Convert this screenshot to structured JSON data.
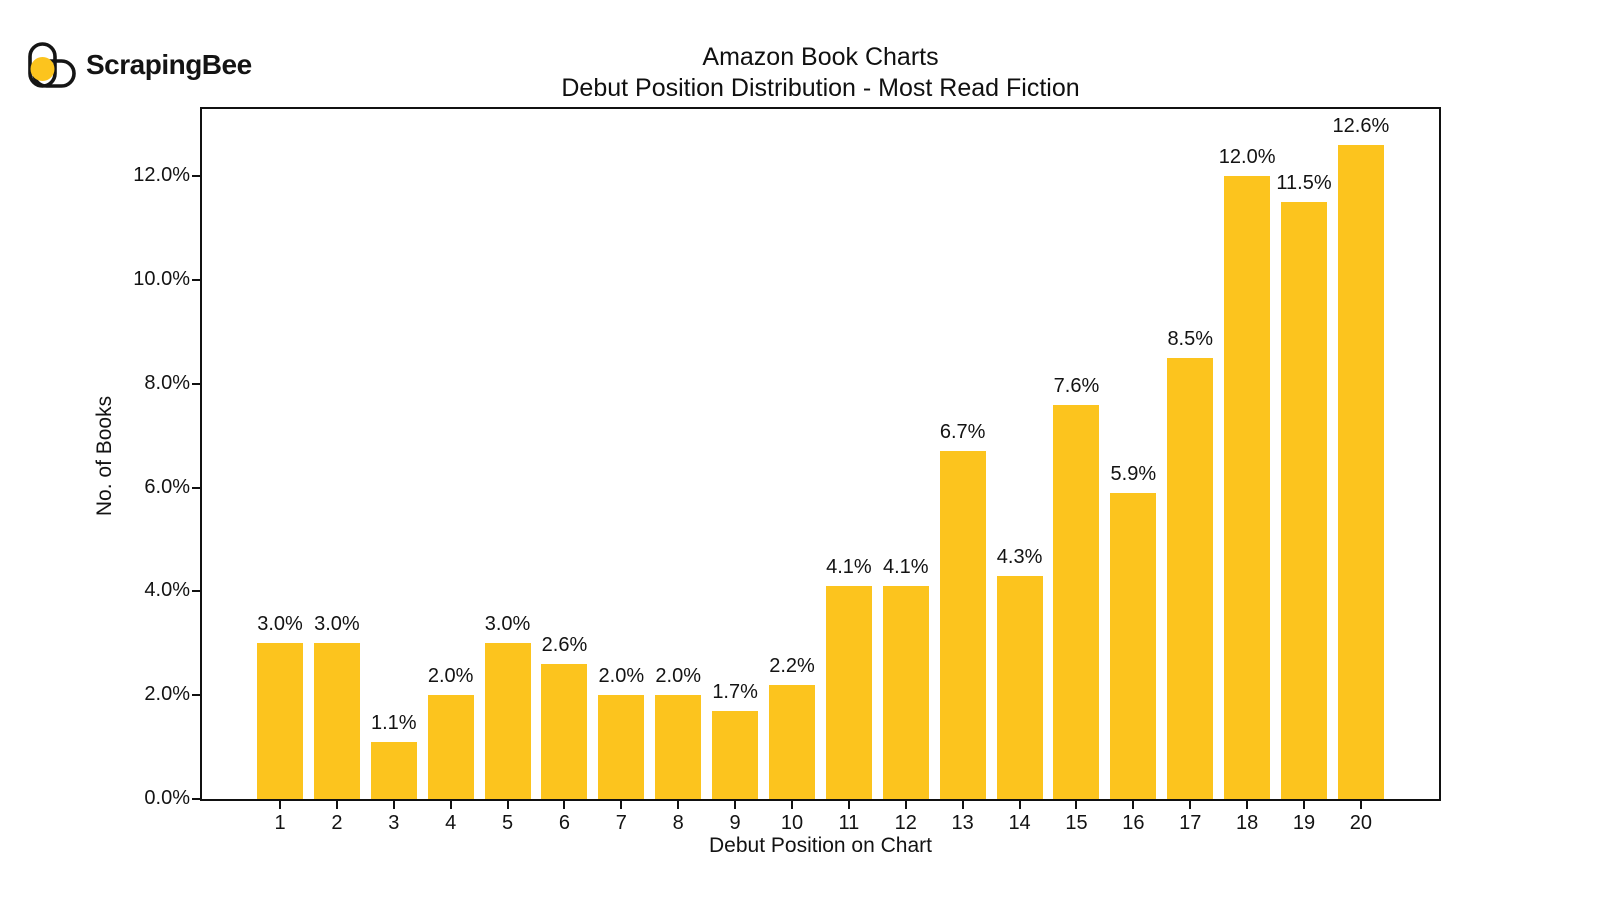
{
  "brand": {
    "name": "ScrapingBee",
    "icon": "scrapingbee-bee-icon",
    "accent_color": "#fcc41e",
    "text_color": "#141414"
  },
  "chart_data": {
    "type": "bar",
    "title": "Amazon Book Charts",
    "subtitle": "Debut Position Distribution - Most Read Fiction",
    "xlabel": "Debut Position on Chart",
    "ylabel": "No. of Books",
    "categories": [
      "1",
      "2",
      "3",
      "4",
      "5",
      "6",
      "7",
      "8",
      "9",
      "10",
      "11",
      "12",
      "13",
      "14",
      "15",
      "16",
      "17",
      "18",
      "19",
      "20"
    ],
    "values": [
      3.0,
      3.0,
      1.1,
      2.0,
      3.0,
      2.6,
      2.0,
      2.0,
      1.7,
      2.2,
      4.1,
      4.1,
      6.7,
      4.3,
      7.6,
      5.9,
      8.5,
      12.0,
      11.5,
      12.6
    ],
    "bar_labels": [
      "3.0%",
      "3.0%",
      "1.1%",
      "2.0%",
      "3.0%",
      "2.6%",
      "2.0%",
      "2.0%",
      "1.7%",
      "2.2%",
      "4.1%",
      "4.1%",
      "6.7%",
      "4.3%",
      "7.6%",
      "5.9%",
      "8.5%",
      "12.0%",
      "11.5%",
      "12.6%"
    ],
    "yticks": [
      0,
      2,
      4,
      6,
      8,
      10,
      12
    ],
    "ytick_labels": [
      "0.0%",
      "2.0%",
      "4.0%",
      "6.0%",
      "8.0%",
      "10.0%",
      "12.0%"
    ],
    "ylim": [
      0,
      13.33
    ],
    "bar_color": "#fcc41e",
    "value_label_format": "percent_one_decimal",
    "grid": false,
    "legend": null
  }
}
